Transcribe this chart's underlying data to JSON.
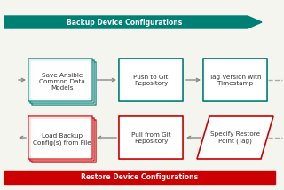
{
  "title_top": "Backup Device Configurations",
  "title_bottom": "Restore Device Configurations",
  "top_bar_color": "#008075",
  "bottom_bar_color": "#cc0000",
  "top_label_color": "#ffffff",
  "bottom_label_color": "#ffffff",
  "teal_box_color": "#008075",
  "red_box_color": "#cc0000",
  "bg_color": "#f5f5f0",
  "box1_top": "Save Ansible\nCommon Data\nModels",
  "box2_top": "Push to Git\nRepository",
  "box3_top": "Tag Version with\nTimestamp",
  "box1_bot": "Load Backup\nConfig(s) from File",
  "box2_bot": "Pull from Git\nRepository",
  "box3_bot": "Specify Restore\nPoint (Tag)"
}
